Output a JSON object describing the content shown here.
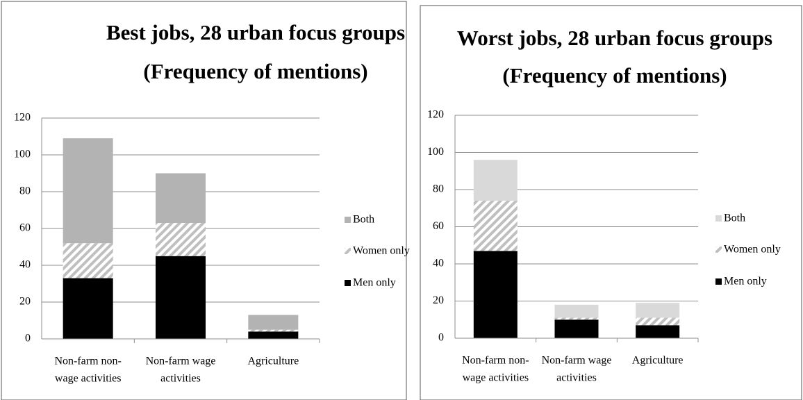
{
  "chart_data": [
    {
      "type": "bar",
      "stacked": true,
      "title": [
        "Best jobs, 28 urban focus groups",
        "(Frequency of mentions)"
      ],
      "categories": [
        [
          "Non-farm non-",
          "wage activities"
        ],
        [
          "Non-farm wage",
          "activities"
        ],
        [
          "Agriculture"
        ]
      ],
      "series": [
        {
          "name": "Men only",
          "color": "#000000",
          "values": [
            33,
            45,
            4
          ]
        },
        {
          "name": "Women only",
          "color": "#bfbfbf",
          "pattern": "hatch",
          "values": [
            19,
            18,
            1
          ]
        },
        {
          "name": "Both",
          "color": "#b3b3b3",
          "values": [
            57,
            27,
            8
          ]
        }
      ],
      "ylim": [
        0,
        120
      ],
      "yticks": [
        0,
        20,
        40,
        60,
        80,
        100,
        120
      ],
      "grid": true,
      "legend": "right"
    },
    {
      "type": "bar",
      "stacked": true,
      "title": [
        "Worst jobs, 28 urban focus groups",
        "(Frequency of mentions)"
      ],
      "categories": [
        [
          "Non-farm non-",
          "wage activities"
        ],
        [
          "Non-farm wage",
          "activities"
        ],
        [
          "Agriculture"
        ]
      ],
      "series": [
        {
          "name": "Men only",
          "color": "#000000",
          "values": [
            47,
            10,
            7
          ]
        },
        {
          "name": "Women only",
          "color": "#bfbfbf",
          "pattern": "hatch",
          "values": [
            27,
            1,
            4
          ]
        },
        {
          "name": "Both",
          "color": "#d9d9d9",
          "values": [
            22,
            7,
            8
          ]
        }
      ],
      "ylim": [
        0,
        120
      ],
      "yticks": [
        0,
        20,
        40,
        60,
        80,
        100,
        120
      ],
      "grid": true,
      "legend": "right"
    }
  ]
}
